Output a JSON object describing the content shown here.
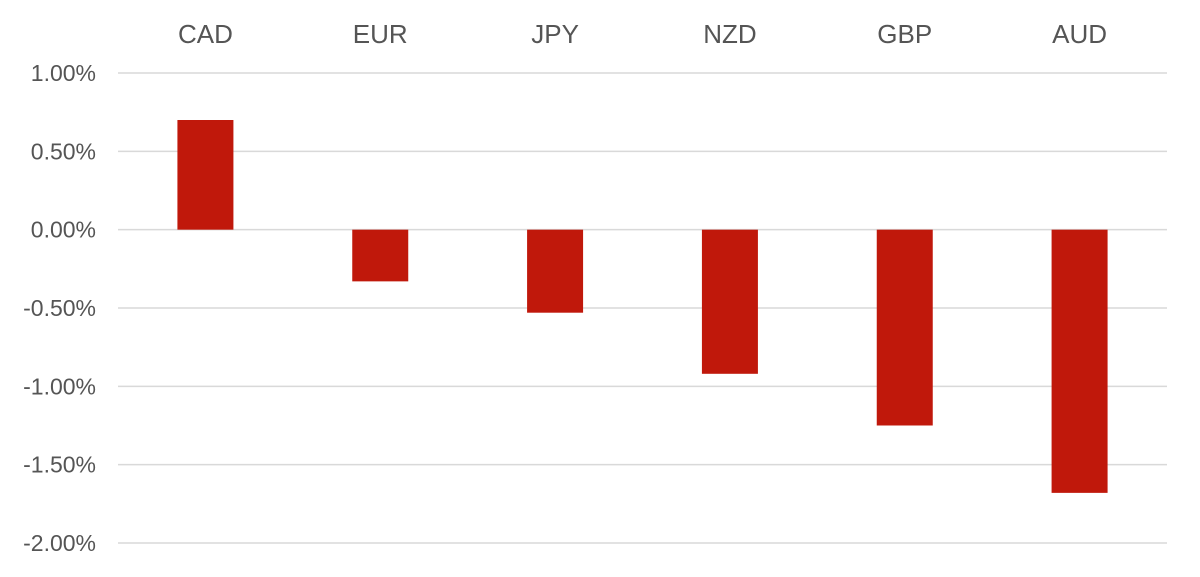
{
  "chart_data": {
    "type": "bar",
    "categories": [
      "CAD",
      "EUR",
      "JPY",
      "NZD",
      "GBP",
      "AUD"
    ],
    "values": [
      0.7,
      -0.33,
      -0.53,
      -0.92,
      -1.25,
      -1.68
    ],
    "yticks": [
      "1.00%",
      "0.50%",
      "0.00%",
      "-0.50%",
      "-1.00%",
      "-1.50%",
      "-2.00%"
    ],
    "ylim": [
      -2.0,
      1.0
    ],
    "grid": true,
    "category_labels_position": "top",
    "bar_color": "#c0180b",
    "grid_color": "#d9d9d9",
    "text_color": "#555555"
  }
}
